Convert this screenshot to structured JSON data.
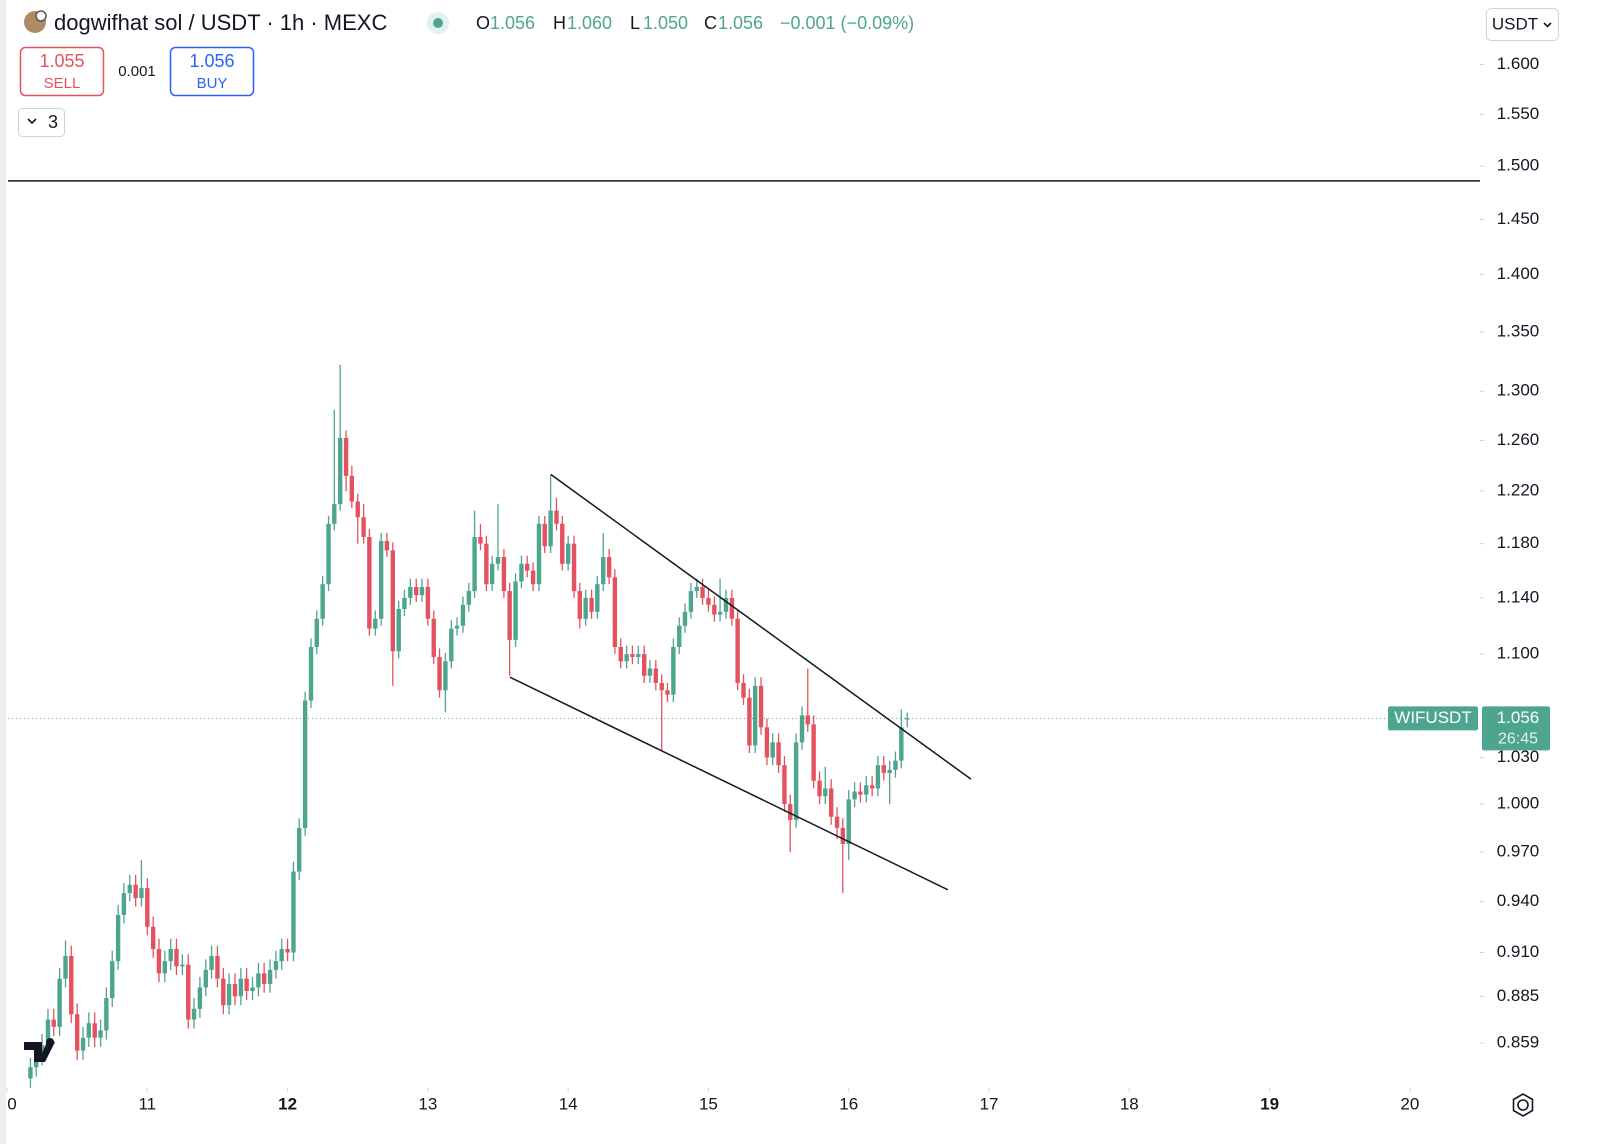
{
  "chart_data": {
    "type": "candlestick",
    "title": "dogwifhat sol / USDT · 1h · MEXC",
    "ohlc_labels": [
      "O",
      "H",
      "L",
      "C"
    ],
    "ohlc_values": [
      "1.056",
      "1.060",
      "1.050",
      "1.056"
    ],
    "change": "−0.001 (−0.09%)",
    "sell_price": "1.055",
    "sell_label": "SELL",
    "spread": "0.001",
    "buy_price": "1.056",
    "buy_label": "BUY",
    "indicators": "3",
    "currency": "USDT",
    "symbol": "WIFUSDT",
    "last_price": 1.056,
    "countdown": "26:45",
    "up_color": "#4ea58f",
    "down_color": "#e5525f",
    "log": true,
    "ylim": [
      0.8365,
      1.667
    ],
    "yticks": [
      {
        "value": 1.6,
        "label": "1.600"
      },
      {
        "value": 1.55,
        "label": "1.550"
      },
      {
        "value": 1.5,
        "label": "1.500"
      },
      {
        "value": 1.45,
        "label": "1.450"
      },
      {
        "value": 1.4,
        "label": "1.400"
      },
      {
        "value": 1.35,
        "label": "1.350"
      },
      {
        "value": 1.3,
        "label": "1.300"
      },
      {
        "value": 1.26,
        "label": "1.260"
      },
      {
        "value": 1.22,
        "label": "1.220"
      },
      {
        "value": 1.18,
        "label": "1.180"
      },
      {
        "value": 1.14,
        "label": "1.140"
      },
      {
        "value": 1.1,
        "label": "1.100"
      },
      {
        "value": 1.03,
        "label": "1.030"
      },
      {
        "value": 1,
        "label": "1.000"
      },
      {
        "value": 0.97,
        "label": "0.970"
      },
      {
        "value": 0.94,
        "label": "0.940"
      },
      {
        "value": 0.91,
        "label": "0.910"
      },
      0.885,
      0.859
    ],
    "xlim": [
      9.95,
      20.5
    ],
    "xticks": [
      {
        "value": 10,
        "label": "0"
      },
      11,
      12,
      13,
      14,
      15,
      16,
      17,
      18,
      19,
      20
    ],
    "hline": 1.486,
    "trendlines": [
      {
        "x": [
          13.877,
          16.871
        ],
        "y": [
          1.233,
          1.016
        ]
      },
      {
        "x": [
          13.585,
          16.707
        ],
        "y": [
          1.084,
          0.947
        ]
      }
    ],
    "x": [
      10.167,
      10.208,
      10.25,
      10.292,
      10.333,
      10.375,
      10.417,
      10.458,
      10.5,
      10.542,
      10.583,
      10.625,
      10.667,
      10.708,
      10.75,
      10.792,
      10.833,
      10.875,
      10.917,
      10.958,
      11.0,
      11.042,
      11.083,
      11.125,
      11.167,
      11.208,
      11.25,
      11.292,
      11.333,
      11.375,
      11.417,
      11.458,
      11.5,
      11.542,
      11.583,
      11.625,
      11.667,
      11.708,
      11.75,
      11.792,
      11.833,
      11.875,
      11.917,
      11.958,
      12.0,
      12.042,
      12.083,
      12.125,
      12.167,
      12.208,
      12.25,
      12.292,
      12.333,
      12.375,
      12.417,
      12.458,
      12.5,
      12.542,
      12.583,
      12.625,
      12.667,
      12.708,
      12.75,
      12.792,
      12.833,
      12.875,
      12.917,
      12.958,
      13.0,
      13.042,
      13.083,
      13.125,
      13.167,
      13.208,
      13.25,
      13.292,
      13.333,
      13.375,
      13.417,
      13.458,
      13.5,
      13.542,
      13.583,
      13.625,
      13.667,
      13.708,
      13.75,
      13.792,
      13.833,
      13.875,
      13.917,
      13.958,
      14.0,
      14.042,
      14.083,
      14.125,
      14.167,
      14.208,
      14.25,
      14.292,
      14.333,
      14.375,
      14.417,
      14.458,
      14.5,
      14.542,
      14.583,
      14.625,
      14.667,
      14.708,
      14.75,
      14.792,
      14.833,
      14.875,
      14.917,
      14.958,
      15.0,
      15.042,
      15.083,
      15.125,
      15.167,
      15.208,
      15.25,
      15.292,
      15.333,
      15.375,
      15.417,
      15.458,
      15.5,
      15.542,
      15.583,
      15.625,
      15.667,
      15.708,
      15.75,
      15.792,
      15.833,
      15.875,
      15.917,
      15.958,
      16.0,
      16.042,
      16.083,
      16.125,
      16.167,
      16.208,
      16.25,
      16.292,
      16.333,
      16.375,
      16.417
    ],
    "candles": [
      [
        0.84,
        0.851,
        0.835,
        0.846
      ],
      [
        0.846,
        0.858,
        0.841,
        0.852
      ],
      [
        0.852,
        0.864,
        0.847,
        0.858
      ],
      [
        0.858,
        0.878,
        0.853,
        0.872
      ],
      [
        0.872,
        0.878,
        0.863,
        0.868
      ],
      [
        0.868,
        0.901,
        0.863,
        0.895
      ],
      [
        0.895,
        0.917,
        0.89,
        0.908
      ],
      [
        0.908,
        0.914,
        0.87,
        0.875
      ],
      [
        0.875,
        0.881,
        0.85,
        0.855
      ],
      [
        0.855,
        0.868,
        0.85,
        0.862
      ],
      [
        0.862,
        0.876,
        0.857,
        0.87
      ],
      [
        0.87,
        0.876,
        0.857,
        0.862
      ],
      [
        0.862,
        0.872,
        0.857,
        0.866
      ],
      [
        0.866,
        0.89,
        0.861,
        0.884
      ],
      [
        0.884,
        0.911,
        0.879,
        0.905
      ],
      [
        0.905,
        0.938,
        0.9,
        0.932
      ],
      [
        0.932,
        0.951,
        0.927,
        0.945
      ],
      [
        0.945,
        0.956,
        0.94,
        0.95
      ],
      [
        0.95,
        0.956,
        0.937,
        0.942
      ],
      [
        0.942,
        0.965,
        0.937,
        0.948
      ],
      [
        0.948,
        0.954,
        0.92,
        0.925
      ],
      [
        0.925,
        0.931,
        0.907,
        0.912
      ],
      [
        0.912,
        0.918,
        0.893,
        0.898
      ],
      [
        0.898,
        0.911,
        0.893,
        0.905
      ],
      [
        0.905,
        0.918,
        0.9,
        0.912
      ],
      [
        0.912,
        0.918,
        0.897,
        0.902
      ],
      [
        0.902,
        0.909,
        0.897,
        0.903
      ],
      [
        0.903,
        0.909,
        0.867,
        0.872
      ],
      [
        0.872,
        0.884,
        0.867,
        0.878
      ],
      [
        0.878,
        0.896,
        0.873,
        0.89
      ],
      [
        0.89,
        0.906,
        0.885,
        0.9
      ],
      [
        0.9,
        0.914,
        0.895,
        0.908
      ],
      [
        0.908,
        0.914,
        0.89,
        0.895
      ],
      [
        0.895,
        0.901,
        0.875,
        0.88
      ],
      [
        0.88,
        0.898,
        0.875,
        0.892
      ],
      [
        0.892,
        0.898,
        0.88,
        0.885
      ],
      [
        0.885,
        0.901,
        0.88,
        0.895
      ],
      [
        0.895,
        0.901,
        0.883,
        0.888
      ],
      [
        0.888,
        0.896,
        0.883,
        0.89
      ],
      [
        0.89,
        0.904,
        0.885,
        0.898
      ],
      [
        0.898,
        0.904,
        0.887,
        0.892
      ],
      [
        0.892,
        0.906,
        0.887,
        0.9
      ],
      [
        0.9,
        0.911,
        0.895,
        0.905
      ],
      [
        0.905,
        0.918,
        0.9,
        0.912
      ],
      [
        0.912,
        0.918,
        0.905,
        0.91
      ],
      [
        0.91,
        0.964,
        0.905,
        0.958
      ],
      [
        0.958,
        0.991,
        0.953,
        0.985
      ],
      [
        0.985,
        1.074,
        0.98,
        1.068
      ],
      [
        1.068,
        1.111,
        1.063,
        1.105
      ],
      [
        1.105,
        1.131,
        1.1,
        1.125
      ],
      [
        1.125,
        1.156,
        1.12,
        1.15
      ],
      [
        1.15,
        1.201,
        1.145,
        1.195
      ],
      [
        1.195,
        1.285,
        1.19,
        1.21
      ],
      [
        1.21,
        1.322,
        1.205,
        1.262
      ],
      [
        1.262,
        1.268,
        1.22,
        1.232
      ],
      [
        1.232,
        1.24,
        1.207,
        1.212
      ],
      [
        1.212,
        1.218,
        1.18,
        1.2
      ],
      [
        1.2,
        1.21,
        1.18,
        1.185
      ],
      [
        1.185,
        1.191,
        1.113,
        1.118
      ],
      [
        1.118,
        1.131,
        1.113,
        1.125
      ],
      [
        1.125,
        1.188,
        1.12,
        1.182
      ],
      [
        1.182,
        1.188,
        1.17,
        1.175
      ],
      [
        1.175,
        1.181,
        1.078,
        1.102
      ],
      [
        1.102,
        1.138,
        1.097,
        1.132
      ],
      [
        1.132,
        1.146,
        1.127,
        1.14
      ],
      [
        1.14,
        1.154,
        1.135,
        1.148
      ],
      [
        1.148,
        1.154,
        1.137,
        1.142
      ],
      [
        1.142,
        1.154,
        1.137,
        1.148
      ],
      [
        1.148,
        1.154,
        1.12,
        1.125
      ],
      [
        1.125,
        1.131,
        1.093,
        1.098
      ],
      [
        1.098,
        1.104,
        1.07,
        1.075
      ],
      [
        1.075,
        1.101,
        1.06,
        1.095
      ],
      [
        1.095,
        1.124,
        1.09,
        1.118
      ],
      [
        1.118,
        1.126,
        1.113,
        1.12
      ],
      [
        1.12,
        1.141,
        1.115,
        1.135
      ],
      [
        1.135,
        1.151,
        1.13,
        1.145
      ],
      [
        1.145,
        1.205,
        1.14,
        1.185
      ],
      [
        1.185,
        1.195,
        1.175,
        1.18
      ],
      [
        1.18,
        1.186,
        1.145,
        1.15
      ],
      [
        1.15,
        1.171,
        1.145,
        1.165
      ],
      [
        1.165,
        1.21,
        1.16,
        1.17
      ],
      [
        1.17,
        1.176,
        1.14,
        1.145
      ],
      [
        1.145,
        1.151,
        1.085,
        1.11
      ],
      [
        1.11,
        1.158,
        1.105,
        1.152
      ],
      [
        1.152,
        1.171,
        1.147,
        1.165
      ],
      [
        1.165,
        1.171,
        1.155,
        1.16
      ],
      [
        1.16,
        1.166,
        1.145,
        1.15
      ],
      [
        1.15,
        1.201,
        1.145,
        1.195
      ],
      [
        1.195,
        1.201,
        1.173,
        1.178
      ],
      [
        1.178,
        1.233,
        1.173,
        1.205
      ],
      [
        1.205,
        1.215,
        1.19,
        1.195
      ],
      [
        1.195,
        1.201,
        1.16,
        1.165
      ],
      [
        1.165,
        1.186,
        1.16,
        1.18
      ],
      [
        1.18,
        1.186,
        1.14,
        1.145
      ],
      [
        1.145,
        1.151,
        1.118,
        1.125
      ],
      [
        1.125,
        1.146,
        1.12,
        1.14
      ],
      [
        1.14,
        1.146,
        1.125,
        1.13
      ],
      [
        1.13,
        1.156,
        1.125,
        1.15
      ],
      [
        1.15,
        1.188,
        1.145,
        1.17
      ],
      [
        1.17,
        1.176,
        1.15,
        1.155
      ],
      [
        1.155,
        1.161,
        1.1,
        1.105
      ],
      [
        1.105,
        1.111,
        1.09,
        1.095
      ],
      [
        1.095,
        1.106,
        1.09,
        1.1
      ],
      [
        1.1,
        1.106,
        1.093,
        1.098
      ],
      [
        1.098,
        1.106,
        1.093,
        1.1
      ],
      [
        1.1,
        1.106,
        1.08,
        1.085
      ],
      [
        1.085,
        1.096,
        1.08,
        1.09
      ],
      [
        1.09,
        1.096,
        1.075,
        1.08
      ],
      [
        1.08,
        1.086,
        1.035,
        1.075
      ],
      [
        1.075,
        1.08,
        1.067,
        1.072
      ],
      [
        1.072,
        1.111,
        1.067,
        1.105
      ],
      [
        1.105,
        1.126,
        1.1,
        1.12
      ],
      [
        1.12,
        1.136,
        1.115,
        1.13
      ],
      [
        1.13,
        1.151,
        1.125,
        1.145
      ],
      [
        1.145,
        1.154,
        1.14,
        1.148
      ],
      [
        1.148,
        1.154,
        1.135,
        1.14
      ],
      [
        1.14,
        1.146,
        1.13,
        1.135
      ],
      [
        1.135,
        1.141,
        1.123,
        1.128
      ],
      [
        1.128,
        1.154,
        1.123,
        1.13
      ],
      [
        1.13,
        1.146,
        1.125,
        1.14
      ],
      [
        1.14,
        1.146,
        1.12,
        1.125
      ],
      [
        1.125,
        1.131,
        1.075,
        1.08
      ],
      [
        1.08,
        1.086,
        1.065,
        1.07
      ],
      [
        1.07,
        1.076,
        1.033,
        1.038
      ],
      [
        1.038,
        1.084,
        1.033,
        1.078
      ],
      [
        1.078,
        1.084,
        1.045,
        1.05
      ],
      [
        1.05,
        1.056,
        1.025,
        1.03
      ],
      [
        1.03,
        1.046,
        1.025,
        1.04
      ],
      [
        1.04,
        1.046,
        1.02,
        1.025
      ],
      [
        1.025,
        1.031,
        0.995,
        1.0
      ],
      [
        1.0,
        1.006,
        0.97,
        0.99
      ],
      [
        0.99,
        1.046,
        0.985,
        1.04
      ],
      [
        1.04,
        1.064,
        1.035,
        1.058
      ],
      [
        1.058,
        1.09,
        1.047,
        1.052
      ],
      [
        1.052,
        1.058,
        1.01,
        1.015
      ],
      [
        1.015,
        1.021,
        1.0,
        1.005
      ],
      [
        1.005,
        1.024,
        1.0,
        1.01
      ],
      [
        1.01,
        1.016,
        0.987,
        0.992
      ],
      [
        0.992,
        0.998,
        0.978,
        0.985
      ],
      [
        0.985,
        0.991,
        0.945,
        0.975
      ],
      [
        0.975,
        1.009,
        0.965,
        1.003
      ],
      [
        1.003,
        1.014,
        0.998,
        1.008
      ],
      [
        1.008,
        1.014,
        1.001,
        1.006
      ],
      [
        1.006,
        1.018,
        1.001,
        1.012
      ],
      [
        1.012,
        1.018,
        1.005,
        1.01
      ],
      [
        1.01,
        1.031,
        1.005,
        1.025
      ],
      [
        1.025,
        1.031,
        1.015,
        1.02
      ],
      [
        1.02,
        1.028,
        1.0,
        1.022
      ],
      [
        1.022,
        1.034,
        1.017,
        1.028
      ],
      [
        1.028,
        1.062,
        1.023,
        1.05
      ],
      [
        1.056,
        1.06,
        1.05,
        1.056
      ]
    ]
  }
}
